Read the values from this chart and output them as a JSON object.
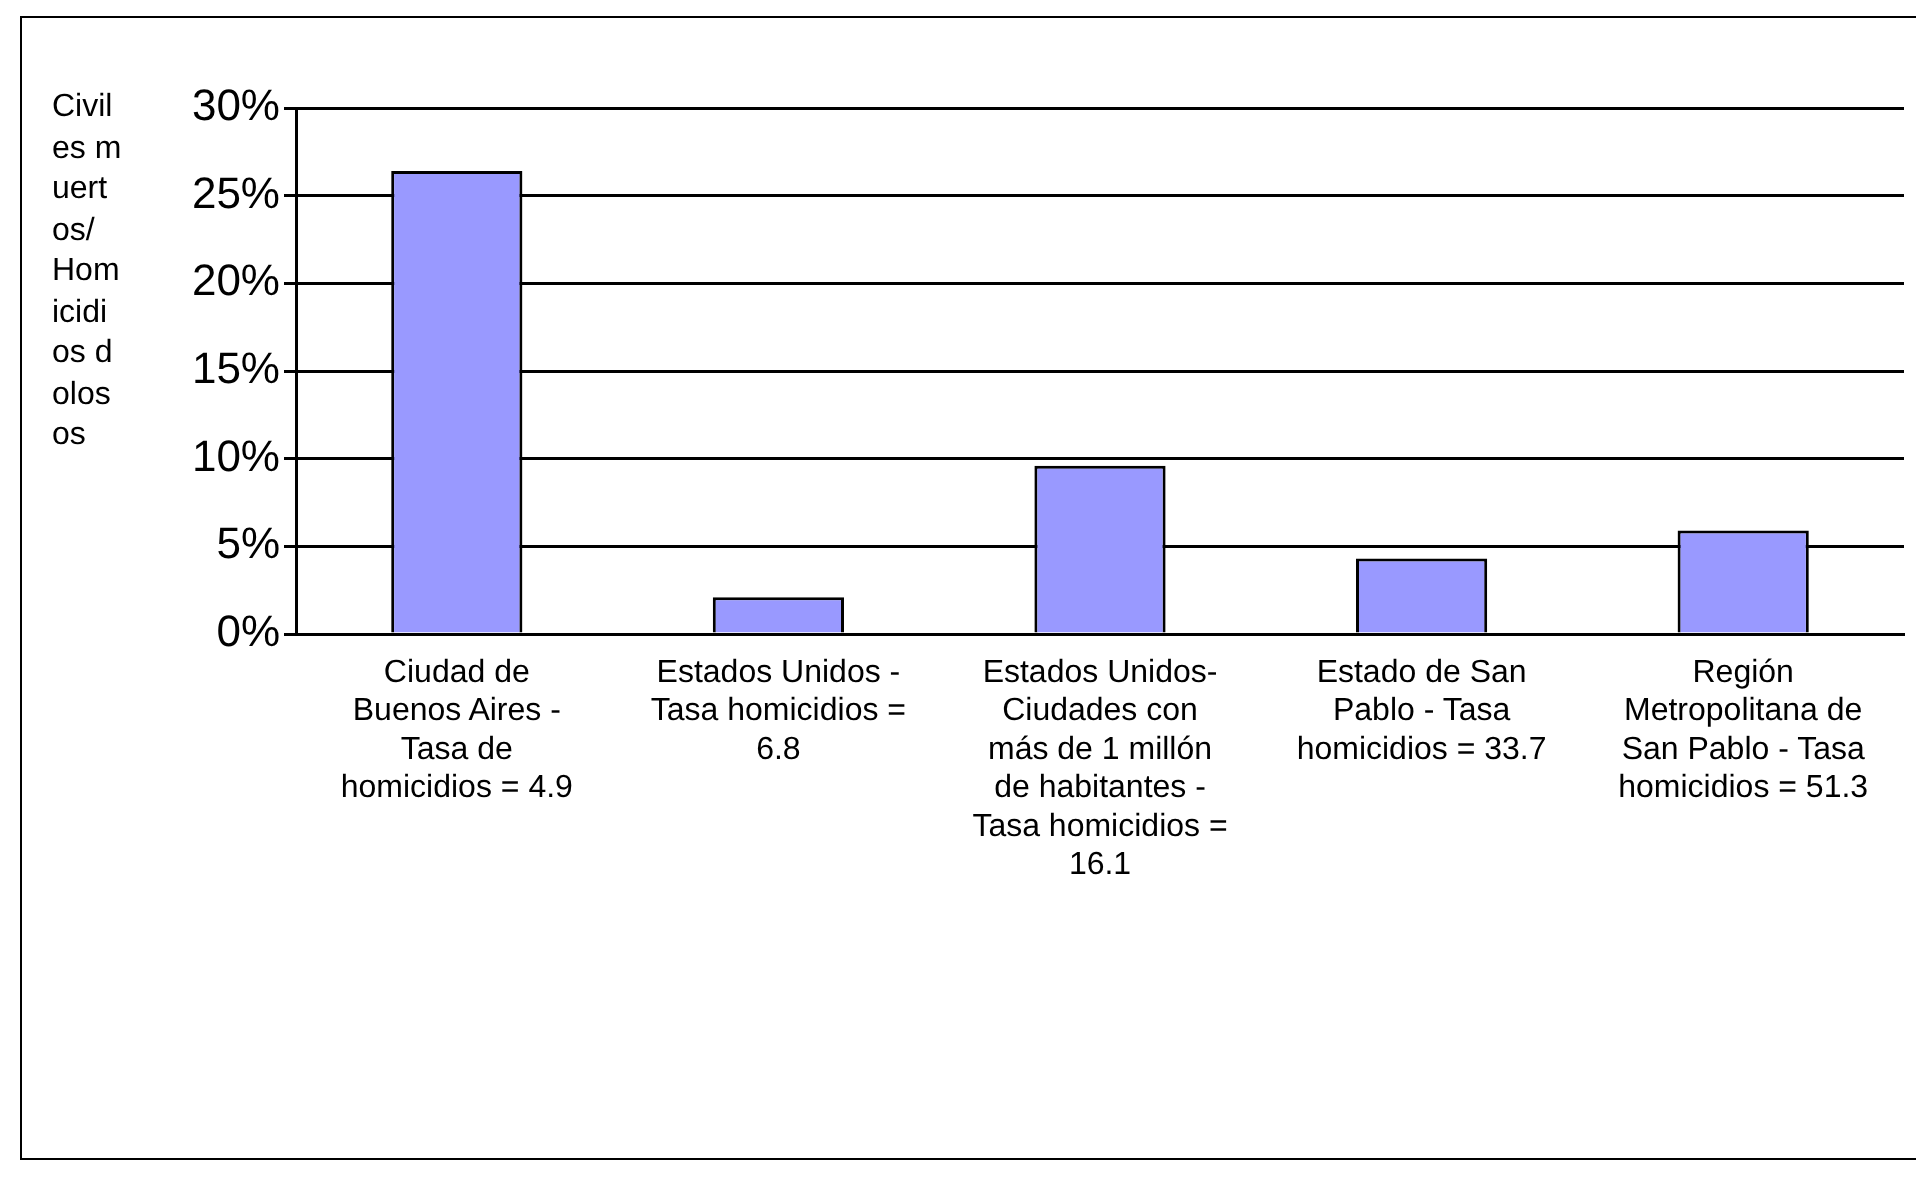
{
  "chart_data": {
    "type": "bar",
    "ylabel": "Civiles muertos/ Homicidios dolosos",
    "categories": [
      "Ciudad de Buenos Aires - Tasa de homicidios = 4.9",
      "Estados Unidos - Tasa homicidios = 6.8",
      "Estados Unidos- Ciudades con más de 1 millón de habitantes - Tasa homicidios = 16.1",
      "Estado de San Pablo - Tasa homicidios = 33.7",
      "Región Metropolitana de San Pablo - Tasa homicidios = 51.3"
    ],
    "values": [
      26.4,
      2.1,
      9.6,
      4.3,
      5.9
    ],
    "color": "#9999ff",
    "ylim": [
      0,
      30
    ],
    "yticks": [
      {
        "value": 0,
        "label": "0%"
      },
      {
        "value": 5,
        "label": "5%"
      },
      {
        "value": 10,
        "label": "10%"
      },
      {
        "value": 15,
        "label": "15%"
      },
      {
        "value": 20,
        "label": "20%"
      },
      {
        "value": 25,
        "label": "25%"
      },
      {
        "value": 30,
        "label": "30%"
      }
    ],
    "grid": "y",
    "legend": false
  }
}
